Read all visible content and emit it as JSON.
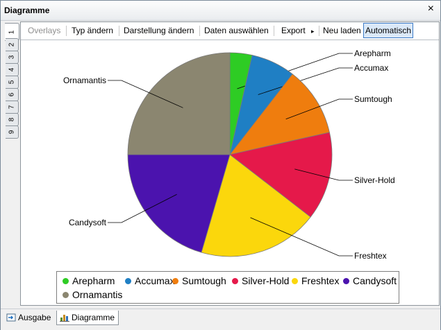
{
  "window": {
    "title": "Diagramme"
  },
  "vertical_tabs": [
    "1",
    "2",
    "3",
    "4",
    "5",
    "6",
    "7",
    "8",
    "9"
  ],
  "toolbar": {
    "overlays": "Overlays",
    "typ_aendern": "Typ ändern",
    "darstellung_aendern": "Darstellung ändern",
    "daten_auswaehlen": "Daten auswählen",
    "export": "Export",
    "export_arrow": "▸",
    "neu_laden": "Neu laden",
    "automatisch": "Automatisch"
  },
  "chart_data": {
    "type": "pie",
    "title": "",
    "slices": [
      {
        "label": "Arepharm",
        "value": 3.5,
        "color": "#2ecc24"
      },
      {
        "label": "Accumax",
        "value": 7,
        "color": "#1f7fc4"
      },
      {
        "label": "Sumtough",
        "value": 11,
        "color": "#ef7d0e"
      },
      {
        "label": "Silver-Hold",
        "value": 14,
        "color": "#e5194a"
      },
      {
        "label": "Freshtex",
        "value": 19,
        "color": "#fbd70c"
      },
      {
        "label": "Candysoft",
        "value": 20.5,
        "color": "#4b13ae"
      },
      {
        "label": "Ornamantis",
        "value": 25,
        "color": "#8b8670"
      }
    ]
  },
  "bottom_tabs": {
    "ausgabe": "Ausgabe",
    "diagramme": "Diagramme"
  }
}
